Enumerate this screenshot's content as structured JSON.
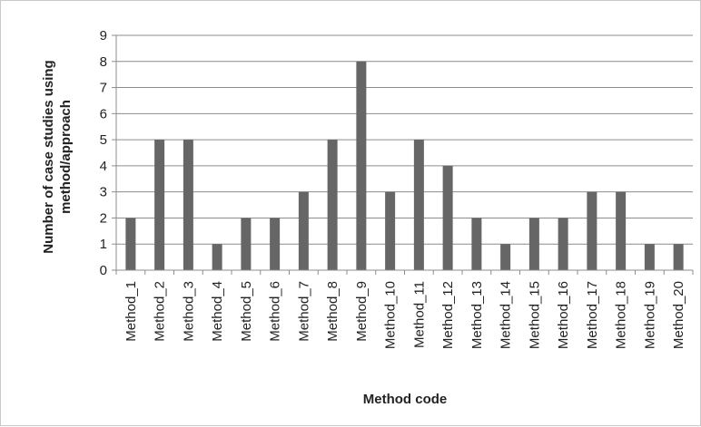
{
  "chart_data": {
    "type": "bar",
    "title": "",
    "xlabel": "Method code",
    "ylabel_lines": [
      "Number of case studies using",
      "method/approach"
    ],
    "categories": [
      "Method_1",
      "Method_2",
      "Method_3",
      "Method_4",
      "Method_5",
      "Method_6",
      "Method_7",
      "Method_8",
      "Method_9",
      "Method_10",
      "Method_11",
      "Method_12",
      "Method_13",
      "Method_14",
      "Method_15",
      "Method_16",
      "Method_17",
      "Method_18",
      "Method_19",
      "Method_20"
    ],
    "values": [
      2,
      5,
      5,
      1,
      2,
      2,
      3,
      5,
      8,
      3,
      5,
      4,
      2,
      1,
      2,
      2,
      3,
      3,
      1,
      1
    ],
    "ylim": [
      0,
      9
    ],
    "yticks": [
      0,
      1,
      2,
      3,
      4,
      5,
      6,
      7,
      8,
      9
    ],
    "grid": true,
    "legend": "none",
    "colors": {
      "bar": "#666666",
      "grid": "#8c8c8c",
      "axis": "#8c8c8c"
    }
  }
}
